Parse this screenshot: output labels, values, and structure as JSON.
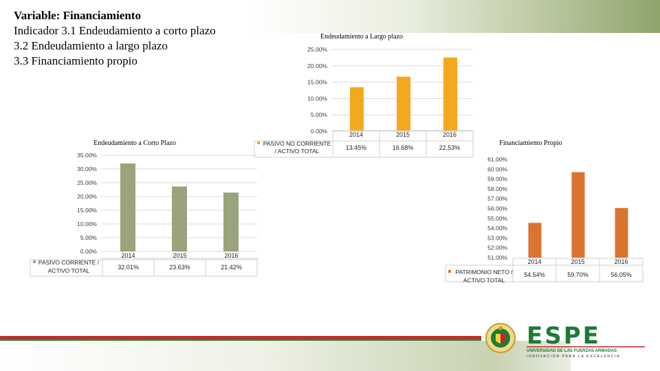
{
  "slide": {
    "title_line1": "Variable: Financiamiento",
    "title_line2": "Indicador 3.1 Endeudamiento a corto plazo",
    "title_line3": "3.2 Endeudamiento a largo plazo",
    "title_line4": "3.3 Financiamiento propio"
  },
  "colors": {
    "short_term": "#9aa37b",
    "long_term": "#f4a81d",
    "own": "#d9732f"
  },
  "chart_data": [
    {
      "id": "short",
      "type": "bar",
      "title": "Endeudamiento  a  Corto Plazo",
      "categories": [
        "2014",
        "2015",
        "2016"
      ],
      "series": [
        {
          "name": "PASIVO CORRIENTE / ACTIVO TOTAL",
          "values": [
            32.01,
            23.63,
            21.42
          ]
        }
      ],
      "data_labels": [
        "32.01%",
        "23.63%",
        "21.42%"
      ],
      "ylim": [
        0,
        35
      ],
      "yticks": [
        "0.00%",
        "5.00%",
        "10.00%",
        "15.00%",
        "20.00%",
        "25.00%",
        "30.00%",
        "35.00%"
      ],
      "legend_label_line1": "PASIVO CORRIENTE /",
      "legend_label_line2": "ACTIVO TOTAL",
      "grid": true
    },
    {
      "id": "long",
      "type": "bar",
      "title": "Endeudamiento  a Largo plazo",
      "categories": [
        "2014",
        "2015",
        "2016"
      ],
      "series": [
        {
          "name": "PASIVO NO CORRIENTE / ACTIVO TOTAL",
          "values": [
            13.45,
            16.68,
            22.53
          ]
        }
      ],
      "data_labels": [
        "13.45%",
        "16.68%",
        "22.53%"
      ],
      "ylim": [
        0,
        25
      ],
      "yticks": [
        "0.00%",
        "5.00%",
        "10.00%",
        "15.00%",
        "20.00%",
        "25.00%"
      ],
      "legend_label_line1": "PASIVO NO CORRIENTE",
      "legend_label_line2": "/ ACTIVO TOTAL",
      "grid": true
    },
    {
      "id": "own",
      "type": "bar",
      "title": "Financiamiento Propio",
      "categories": [
        "2014",
        "2015",
        "2016"
      ],
      "series": [
        {
          "name": "PATRIMONIO NETO / ACTIVO TOTAL",
          "values": [
            54.54,
            59.7,
            56.05
          ]
        }
      ],
      "data_labels": [
        "54.54%",
        "59.70%",
        "56.05%"
      ],
      "ylim": [
        51,
        61
      ],
      "yticks": [
        "51.00%",
        "52.00%",
        "53.00%",
        "54.00%",
        "55.00%",
        "56.00%",
        "57.00%",
        "58.00%",
        "59.00%",
        "60.00%",
        "61.00%"
      ],
      "legend_label_line1": "PATRIMONIO NETO /",
      "legend_label_line2": "ACTIVO TOTAL",
      "grid": false
    }
  ],
  "logo": {
    "name": "ESPE",
    "line1": "UNIVERSIDAD DE LAS FUERZAS ARMADAS",
    "line2": "INNOVACIÓN  PARA  LA  EXCELENCIA",
    "colors": {
      "green": "#1e7a37",
      "red": "#c8262c"
    }
  }
}
